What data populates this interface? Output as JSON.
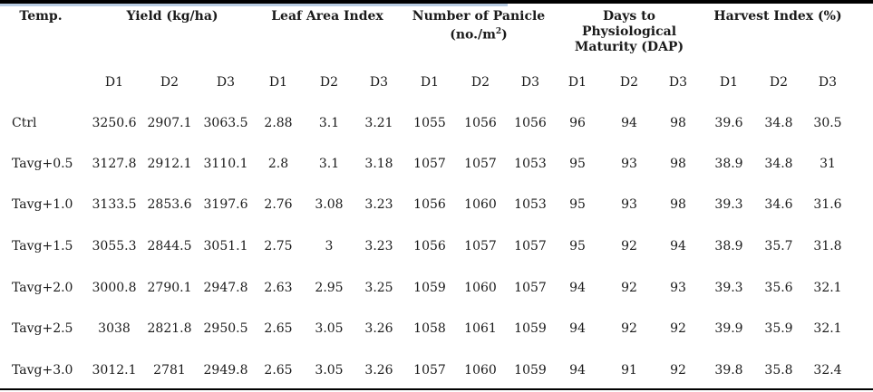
{
  "table": {
    "headers": {
      "temp": "Temp.",
      "yield": "Yield (kg/ha)",
      "lai": "Leaf Area Index",
      "panicle_line1": "Number of Panicle",
      "panicle_line2_pre": "(no./m",
      "panicle_line2_sup": "2",
      "panicle_line2_post": ")",
      "days_line1": "Days to",
      "days_line2": "Physiological",
      "days_line3": "Maturity (DAP)",
      "hi": "Harvest Index (%)"
    },
    "subheaders": [
      "D1",
      "D2",
      "D3",
      "D1",
      "D2",
      "D3",
      "D1",
      "D2",
      "D3",
      "D1",
      "D2",
      "D3",
      "D1",
      "D2",
      "D3"
    ],
    "rows": [
      {
        "label": "Ctrl",
        "values": [
          "3250.6",
          "2907.1",
          "3063.5",
          "2.88",
          "3.1",
          "3.21",
          "1055",
          "1056",
          "1056",
          "96",
          "94",
          "98",
          "39.6",
          "34.8",
          "30.5"
        ]
      },
      {
        "label": "Tavg+0.5",
        "values": [
          "3127.8",
          "2912.1",
          "3110.1",
          "2.8",
          "3.1",
          "3.18",
          "1057",
          "1057",
          "1053",
          "95",
          "93",
          "98",
          "38.9",
          "34.8",
          "31"
        ]
      },
      {
        "label": "Tavg+1.0",
        "values": [
          "3133.5",
          "2853.6",
          "3197.6",
          "2.76",
          "3.08",
          "3.23",
          "1056",
          "1060",
          "1053",
          "95",
          "93",
          "98",
          "39.3",
          "34.6",
          "31.6"
        ]
      },
      {
        "label": "Tavg+1.5",
        "values": [
          "3055.3",
          "2844.5",
          "3051.1",
          "2.75",
          "3",
          "3.23",
          "1056",
          "1057",
          "1057",
          "95",
          "92",
          "94",
          "38.9",
          "35.7",
          "31.8"
        ]
      },
      {
        "label": "Tavg+2.0",
        "values": [
          "3000.8",
          "2790.1",
          "2947.8",
          "2.63",
          "2.95",
          "3.25",
          "1059",
          "1060",
          "1057",
          "94",
          "92",
          "93",
          "39.3",
          "35.6",
          "32.1"
        ]
      },
      {
        "label": "Tavg+2.5",
        "values": [
          "3038",
          "2821.8",
          "2950.5",
          "2.65",
          "3.05",
          "3.26",
          "1058",
          "1061",
          "1059",
          "94",
          "92",
          "92",
          "39.9",
          "35.9",
          "32.1"
        ]
      },
      {
        "label": "Tavg+3.0",
        "values": [
          "3012.1",
          "2781",
          "2949.8",
          "2.65",
          "3.05",
          "3.26",
          "1057",
          "1060",
          "1059",
          "94",
          "91",
          "92",
          "39.8",
          "35.8",
          "32.4"
        ]
      }
    ]
  }
}
